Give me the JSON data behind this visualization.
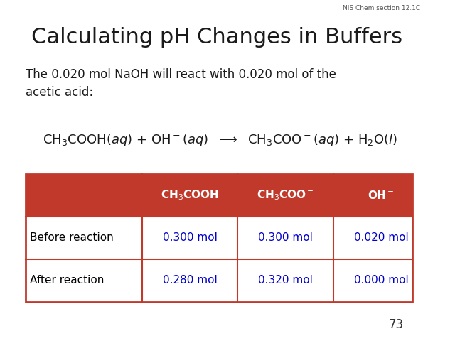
{
  "title": "Calculating pH Changes in Buffers",
  "subtitle": "The 0.020 mol NaOH will react with 0.020 mol of the\nacetic acid:",
  "watermark": "NIS Chem section 12.1C",
  "page_number": "73",
  "bg_color": "#ffffff",
  "title_color": "#1a1a1a",
  "text_color": "#1a1a1a",
  "table_header_bg": "#c0392b",
  "table_header_text": "#ffffff",
  "table_border_color": "#c0392b",
  "table_text_color": "#0000cc",
  "table_label_color": "#000000",
  "col_headers": [
    "CH₃COOH",
    "CH₃COO⁻",
    "OH⁻"
  ],
  "row_labels": [
    "Before reaction",
    "After reaction"
  ],
  "table_data": [
    [
      "0.300 mol",
      "0.300 mol",
      "0.020 mol"
    ],
    [
      "0.280 mol",
      "0.320 mol",
      "0.000 mol"
    ]
  ]
}
